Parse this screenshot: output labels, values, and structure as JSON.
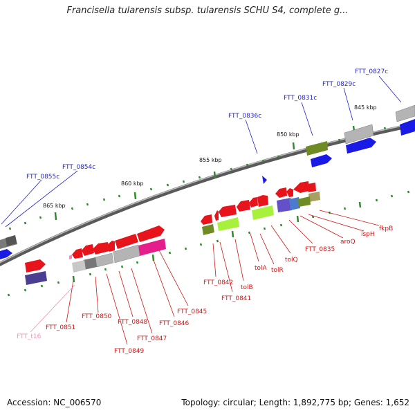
{
  "title": "Francisella tularensis subsp. tularensis SCHU S4, complete g...",
  "footer": {
    "accession": "Accession: NC_006570",
    "summary": "Topology: circular; Length: 1,892,775 bp; Genes: 1,652"
  },
  "colors": {
    "backbone": "#8c8c8c",
    "tick": "#2e8b2e",
    "label_blue": "#1f1fd0",
    "label_red": "#d21414",
    "label_pink": "#f08fb4",
    "gene_red": "#e8141c",
    "gene_blue": "#1a1ae6",
    "gene_gray": "#a8a8a8",
    "gene_olive": "#6e8c23",
    "gene_lime": "#a7f03c",
    "gene_magenta": "#e61e8c",
    "gene_slate": "#5a50a0"
  },
  "scale_labels": [
    "865 kbp",
    "860 kbp",
    "855 kbp",
    "850 kbp",
    "845 kbp"
  ],
  "labels": {
    "top": [
      "FTT_0827c",
      "FTT_0829c",
      "FTT_0831c",
      "FTT_0836c",
      "FTT_0854c",
      "FTT_0855c"
    ],
    "bottom": [
      "fkpB",
      "ispH",
      "aroQ",
      "FTT_0835",
      "tolQ",
      "tolR",
      "tolA",
      "tolB",
      "FTT_0841",
      "FTT_0842",
      "FTT_0845",
      "FTT_0846",
      "FTT_0847",
      "FTT_0848",
      "FTT_0849",
      "FTT_0850",
      "FTT_0851",
      "FTT_t16"
    ]
  }
}
